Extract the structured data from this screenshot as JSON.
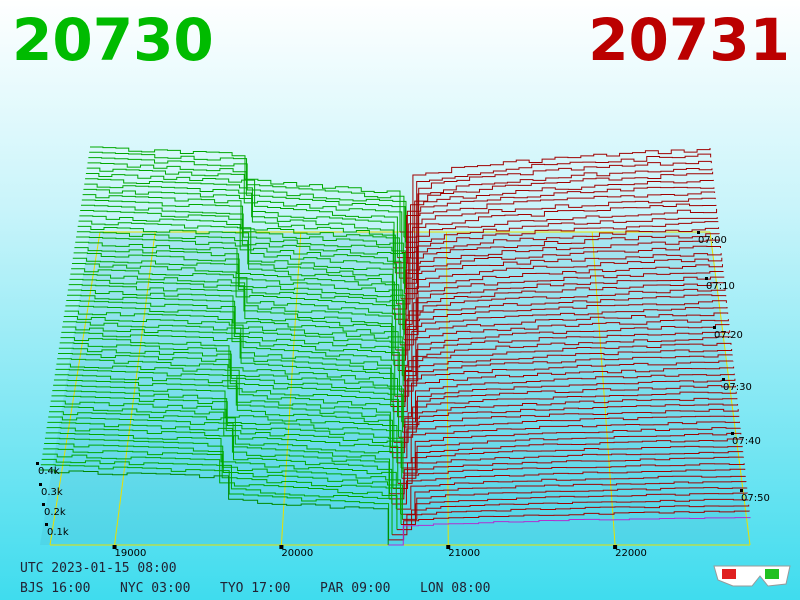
{
  "header": {
    "bid": "20730",
    "ask": "20731"
  },
  "price_axis": [
    "19000",
    "20000",
    "21000",
    "22000"
  ],
  "depth_axis": [
    "0.4k",
    "0.3k",
    "0.2k",
    "0.1k"
  ],
  "time_axis": [
    "07:00",
    "07:10",
    "07:20",
    "07:30",
    "07:40",
    "07:50"
  ],
  "footer": {
    "utc": "UTC 2023-01-15 08:00",
    "clocks": [
      "BJS 16:00",
      "NYC 03:00",
      "TYO 17:00",
      "PAR 09:00",
      "LON 08:00"
    ]
  }
}
